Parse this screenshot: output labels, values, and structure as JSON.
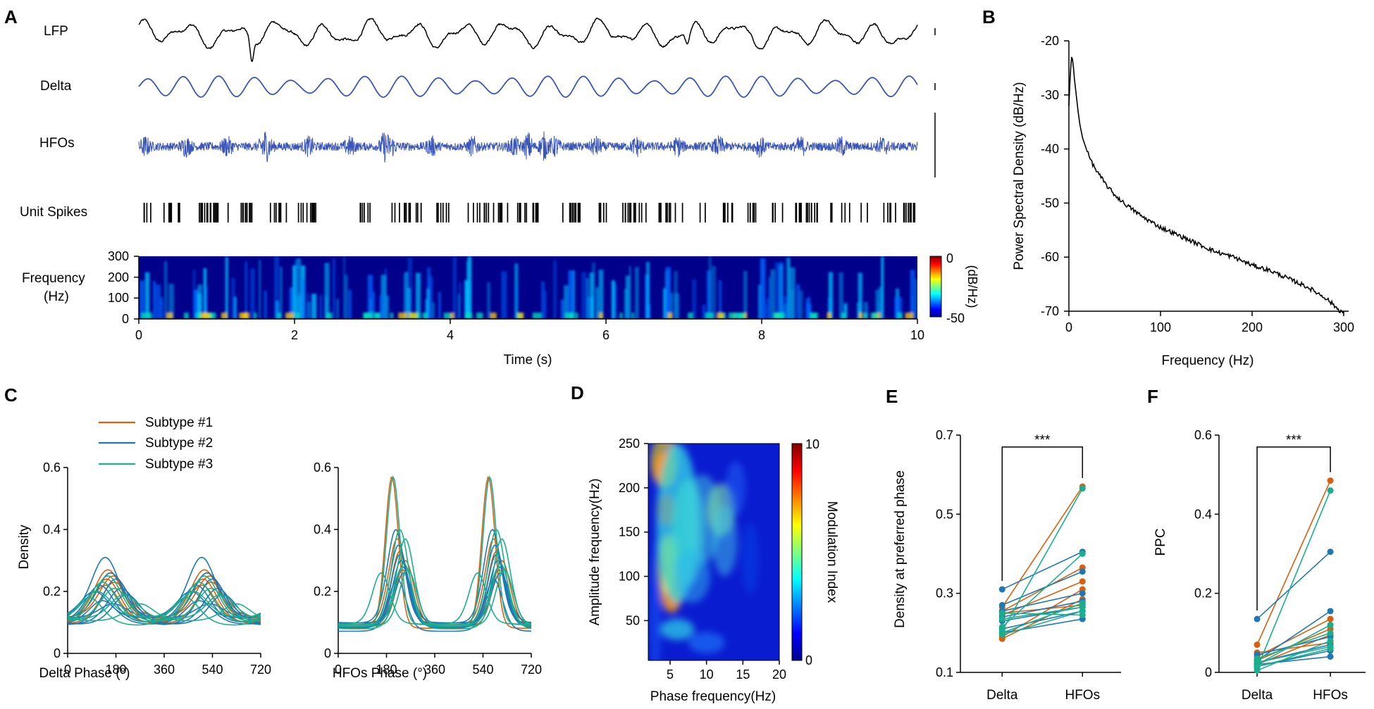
{
  "panels": {
    "A": "A",
    "B": "B",
    "C": "C",
    "D": "D",
    "E": "E",
    "F": "F"
  },
  "colors": {
    "sub1": "#D95F0E",
    "sub2": "#1F78B4",
    "sub3": "#1AAE8F",
    "lfp": "#000000",
    "delta": "#3A55B8",
    "hfo": "#3A55B8"
  },
  "panelA": {
    "trace_labels": [
      "LFP",
      "Delta",
      "HFOs",
      "Unit Spikes"
    ],
    "spec_ylabel": [
      "Frequency",
      "(Hz)"
    ],
    "spec_yticks": [
      "300",
      "200",
      "100",
      "0"
    ],
    "xticks": [
      "0",
      "2",
      "4",
      "6",
      "8",
      "10"
    ],
    "xlabel": "Time (s)",
    "colorbar": {
      "max": "0",
      "min": "-50",
      "label": "(dB/Hz)"
    }
  },
  "chart_data": [
    {
      "id": "B",
      "type": "line",
      "title": "",
      "xlabel": "Frequency (Hz)",
      "ylabel": "Power Spectral Density (dB/Hz)",
      "xlim": [
        0,
        300
      ],
      "ylim": [
        -70,
        -20
      ],
      "xticks": [
        "0",
        "100",
        "200",
        "300"
      ],
      "yticks": [
        "-20",
        "-30",
        "-40",
        "-50",
        "-60",
        "-70"
      ],
      "x": [
        0,
        1,
        2,
        3,
        4,
        5,
        6,
        8,
        10,
        12,
        15,
        20,
        25,
        30,
        40,
        50,
        60,
        80,
        100,
        120,
        140,
        160,
        180,
        200,
        220,
        240,
        260,
        280,
        290,
        295,
        300
      ],
      "y": [
        -32,
        -28,
        -25,
        -23,
        -23.5,
        -25,
        -27,
        -30,
        -33,
        -35.5,
        -38,
        -40.5,
        -42.5,
        -44,
        -46.5,
        -48.5,
        -50,
        -52.5,
        -54.5,
        -56,
        -57.5,
        -59,
        -60,
        -61.5,
        -62.5,
        -64,
        -65.5,
        -67.5,
        -69,
        -69.8,
        -70.3
      ]
    },
    {
      "id": "C-left",
      "type": "line",
      "xlabel": "Delta Phase (°)",
      "ylabel": "Density",
      "xlim": [
        0,
        720
      ],
      "ylim": [
        0,
        0.6
      ],
      "xticks": [
        "0",
        "180",
        "360",
        "540",
        "720"
      ],
      "yticks": [
        "0",
        "0.2",
        "0.4",
        "0.6"
      ],
      "legend": [
        "Subtype #1",
        "Subtype #2",
        "Subtype #3"
      ],
      "series": [
        {
          "name": "Subtype #1",
          "peaks": [
            150,
            160,
            170,
            145,
            175,
            140
          ],
          "amps": [
            0.27,
            0.26,
            0.25,
            0.24,
            0.23,
            0.22
          ]
        },
        {
          "name": "Subtype #2",
          "peaks": [
            140,
            160,
            180,
            120,
            200,
            100,
            220,
            130,
            170
          ],
          "amps": [
            0.31,
            0.26,
            0.24,
            0.22,
            0.21,
            0.2,
            0.19,
            0.17,
            0.16
          ]
        },
        {
          "name": "Subtype #3",
          "peaks": [
            150,
            130,
            175,
            110,
            210,
            80,
            270
          ],
          "amps": [
            0.25,
            0.23,
            0.21,
            0.2,
            0.19,
            0.18,
            0.16
          ]
        }
      ]
    },
    {
      "id": "C-right",
      "type": "line",
      "xlabel": "HFOs Phase (°)",
      "ylabel": "",
      "xlim": [
        0,
        720
      ],
      "ylim": [
        0,
        0.6
      ],
      "xticks": [
        "0",
        "180",
        "360",
        "540",
        "720"
      ],
      "yticks": [
        "0",
        "0.2",
        "0.4",
        "0.6"
      ],
      "series": [
        {
          "name": "Subtype #1",
          "peaks": [
            200,
            220,
            230,
            250,
            240
          ],
          "amps": [
            0.57,
            0.37,
            0.33,
            0.3,
            0.27
          ]
        },
        {
          "name": "Subtype #2",
          "peaks": [
            215,
            225,
            230,
            235,
            240,
            245,
            220
          ],
          "amps": [
            0.4,
            0.35,
            0.32,
            0.3,
            0.28,
            0.26,
            0.24
          ]
        },
        {
          "name": "Subtype #3",
          "peaks": [
            205,
            230,
            250,
            160,
            245,
            260
          ],
          "amps": [
            0.57,
            0.4,
            0.37,
            0.26,
            0.29,
            0.27
          ]
        }
      ]
    },
    {
      "id": "D",
      "type": "heatmap",
      "xlabel": "Phase frequency(Hz)",
      "ylabel": "Amplitude frequency(Hz)",
      "xlim": [
        2,
        20
      ],
      "ylim": [
        5,
        250
      ],
      "xticks": [
        "5",
        "10",
        "15",
        "20"
      ],
      "yticks": [
        "250",
        "200",
        "150",
        "100",
        "50"
      ],
      "colorbar": {
        "label": "Modulation Index",
        "min": "0",
        "max": "10"
      }
    },
    {
      "id": "E",
      "type": "scatter",
      "ylabel": "Density at preferred phase",
      "categories": [
        "Delta",
        "HFOs"
      ],
      "ylim": [
        0.1,
        0.7
      ],
      "yticks": [
        "0.7",
        "0.5",
        "0.3",
        "0.1"
      ],
      "significance": "***",
      "pairs": [
        {
          "g": 1,
          "d": 0.265,
          "h": 0.57
        },
        {
          "g": 1,
          "d": 0.255,
          "h": 0.365
        },
        {
          "g": 1,
          "d": 0.245,
          "h": 0.33
        },
        {
          "g": 1,
          "d": 0.19,
          "h": 0.31
        },
        {
          "g": 1,
          "d": 0.185,
          "h": 0.285
        },
        {
          "g": 1,
          "d": 0.25,
          "h": 0.27
        },
        {
          "g": 2,
          "d": 0.31,
          "h": 0.405
        },
        {
          "g": 2,
          "d": 0.27,
          "h": 0.355
        },
        {
          "g": 2,
          "d": 0.255,
          "h": 0.3
        },
        {
          "g": 2,
          "d": 0.24,
          "h": 0.28
        },
        {
          "g": 2,
          "d": 0.23,
          "h": 0.265
        },
        {
          "g": 2,
          "d": 0.21,
          "h": 0.255
        },
        {
          "g": 2,
          "d": 0.2,
          "h": 0.235
        },
        {
          "g": 3,
          "d": 0.205,
          "h": 0.565
        },
        {
          "g": 3,
          "d": 0.215,
          "h": 0.4
        },
        {
          "g": 3,
          "d": 0.2,
          "h": 0.275
        },
        {
          "g": 3,
          "d": 0.235,
          "h": 0.265
        },
        {
          "g": 3,
          "d": 0.195,
          "h": 0.255
        },
        {
          "g": 3,
          "d": 0.25,
          "h": 0.245
        }
      ]
    },
    {
      "id": "F",
      "type": "scatter",
      "ylabel": "PPC",
      "categories": [
        "Delta",
        "HFOs"
      ],
      "ylim": [
        0,
        0.6
      ],
      "yticks": [
        "0.6",
        "0.4",
        "0.2",
        "0"
      ],
      "significance": "***",
      "pairs": [
        {
          "g": 1,
          "d": 0.07,
          "h": 0.485
        },
        {
          "g": 1,
          "d": 0.04,
          "h": 0.135
        },
        {
          "g": 1,
          "d": 0.03,
          "h": 0.11
        },
        {
          "g": 1,
          "d": 0.02,
          "h": 0.095
        },
        {
          "g": 1,
          "d": 0.05,
          "h": 0.075
        },
        {
          "g": 2,
          "d": 0.135,
          "h": 0.305
        },
        {
          "g": 2,
          "d": 0.03,
          "h": 0.155
        },
        {
          "g": 2,
          "d": 0.045,
          "h": 0.09
        },
        {
          "g": 2,
          "d": 0.025,
          "h": 0.07
        },
        {
          "g": 2,
          "d": 0.015,
          "h": 0.055
        },
        {
          "g": 2,
          "d": 0.02,
          "h": 0.04
        },
        {
          "g": 3,
          "d": 0.01,
          "h": 0.46
        },
        {
          "g": 3,
          "d": 0.02,
          "h": 0.12
        },
        {
          "g": 3,
          "d": 0.035,
          "h": 0.1
        },
        {
          "g": 3,
          "d": 0.005,
          "h": 0.08
        },
        {
          "g": 3,
          "d": 0.025,
          "h": 0.065
        },
        {
          "g": 3,
          "d": 0.015,
          "h": 0.06
        }
      ]
    }
  ]
}
